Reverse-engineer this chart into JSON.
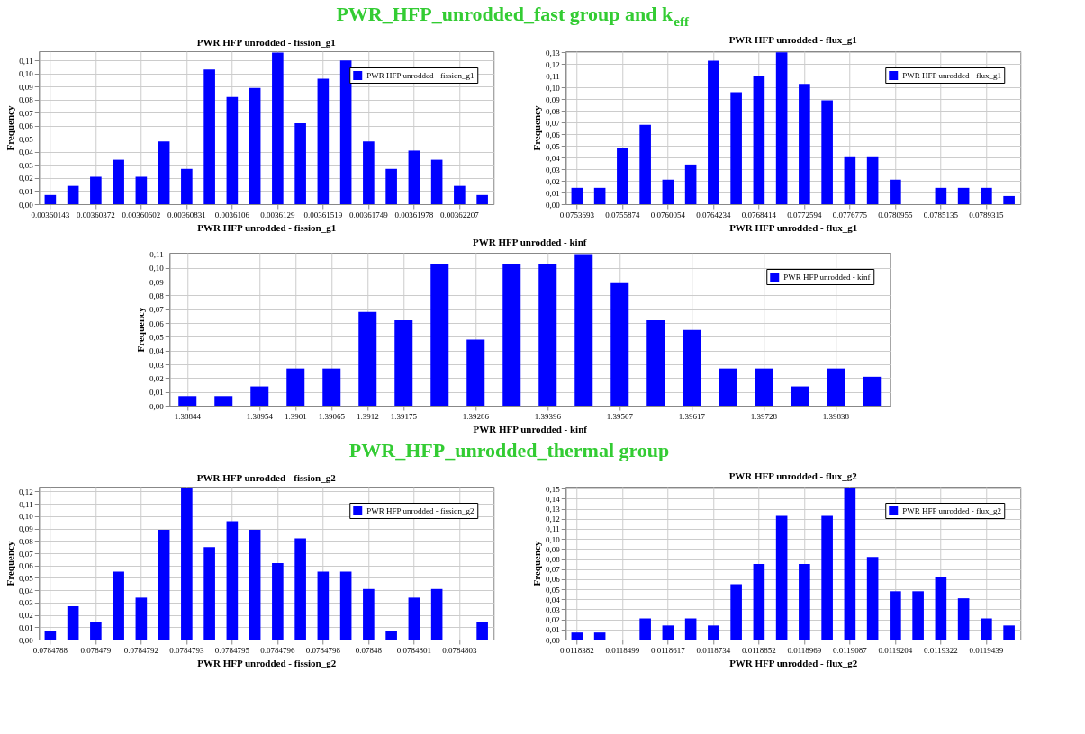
{
  "chart_data": [
    {
      "type": "other",
      "title": "PWR_HFP_unrodded_fast group and k$_{eff}$"
    },
    {
      "type": "bar",
      "title": "PWR HFP unrodded - fission_g1",
      "xlabel": "PWR HFP unrodded - fission_g1",
      "ylabel": "Frequency",
      "legend": "top right",
      "grid": true,
      "categories": [
        "0.00360143",
        null,
        "0.00360372",
        null,
        "0.00360602",
        null,
        "0.00360831",
        null,
        "0.0036106",
        null,
        "0.0036129",
        null,
        "0.00361519",
        null,
        "0.00361749",
        null,
        "0.00361978",
        null,
        "0.00362207",
        null
      ],
      "series": [
        {
          "name": "PWR HFP unrodded - fission_g1",
          "color": "#0000ff",
          "values": [
            0.007,
            0.014,
            0.021,
            0.034,
            0.021,
            0.048,
            0.027,
            0.103,
            0.082,
            0.089,
            0.116,
            0.062,
            0.096,
            0.11,
            0.048,
            0.027,
            0.041,
            0.034,
            0.014,
            0.007
          ]
        }
      ],
      "ylim": [
        0,
        0.117
      ],
      "yticks": [
        {
          "value": 0,
          "label": "0,00"
        },
        {
          "value": 0.01,
          "label": "0,01"
        },
        {
          "value": 0.02,
          "label": "0,02"
        },
        {
          "value": 0.03,
          "label": "0,03"
        },
        {
          "value": 0.04,
          "label": "0,04"
        },
        {
          "value": 0.05,
          "label": "0,05"
        },
        {
          "value": 0.06,
          "label": "0,06"
        },
        {
          "value": 0.07,
          "label": "0,07"
        },
        {
          "value": 0.08,
          "label": "0,08"
        },
        {
          "value": 0.09,
          "label": "0,09"
        },
        {
          "value": 0.1,
          "label": "0,10"
        },
        {
          "value": 0.11,
          "label": "0,11"
        }
      ]
    },
    {
      "type": "bar",
      "title": "PWR HFP unrodded - flux_g1",
      "xlabel": "PWR HFP unrodded - flux_g1",
      "ylabel": "Frequency",
      "legend": "top right",
      "grid": true,
      "categories": [
        "0.0753693",
        null,
        "0.0755874",
        null,
        "0.0760054",
        null,
        "0.0764234",
        null,
        "0.0768414",
        null,
        "0.0772594",
        null,
        "0.0776775",
        null,
        "0.0780955",
        null,
        "0.0785135",
        null,
        "0.0789315",
        null
      ],
      "series": [
        {
          "name": "PWR HFP unrodded - flux_g1",
          "color": "#0000ff",
          "values": [
            0.014,
            0.014,
            0.048,
            0.068,
            0.021,
            0.034,
            0.123,
            0.096,
            0.11,
            0.13,
            0.103,
            0.089,
            0.041,
            0.041,
            0.021,
            0,
            0.014,
            0.014,
            0.014,
            0.007
          ]
        }
      ],
      "ylim": [
        0,
        0.131
      ],
      "yticks": [
        {
          "value": 0,
          "label": "0,00"
        },
        {
          "value": 0.01,
          "label": "0,01"
        },
        {
          "value": 0.02,
          "label": "0,02"
        },
        {
          "value": 0.03,
          "label": "0,03"
        },
        {
          "value": 0.04,
          "label": "0,04"
        },
        {
          "value": 0.05,
          "label": "0,05"
        },
        {
          "value": 0.06,
          "label": "0,06"
        },
        {
          "value": 0.07,
          "label": "0,07"
        },
        {
          "value": 0.08,
          "label": "0,08"
        },
        {
          "value": 0.09,
          "label": "0,09"
        },
        {
          "value": 0.1,
          "label": "0,10"
        },
        {
          "value": 0.11,
          "label": "0,11"
        },
        {
          "value": 0.12,
          "label": "0,12"
        },
        {
          "value": 0.13,
          "label": "0,13"
        }
      ]
    },
    {
      "type": "bar",
      "title": "PWR HFP unrodded - kinf",
      "xlabel": "PWR HFP unrodded - kinf",
      "ylabel": "Frequency",
      "legend": "top right",
      "grid": true,
      "categories": [
        "1.38844",
        null,
        "1.38954",
        "1.3901",
        "1.39065",
        "1.3912",
        "1.39175",
        null,
        "1.39286",
        null,
        "1.39396",
        null,
        "1.39507",
        null,
        "1.39617",
        null,
        "1.39728",
        null,
        "1.39838",
        null
      ],
      "series": [
        {
          "name": "PWR HFP unrodded - kinf",
          "color": "#0000ff",
          "values": [
            0.007,
            0.007,
            0.014,
            0.027,
            0.027,
            0.068,
            0.062,
            0.103,
            0.048,
            0.103,
            0.103,
            0.11,
            0.089,
            0.062,
            0.055,
            0.027,
            0.027,
            0.014,
            0.027,
            0.021
          ]
        }
      ],
      "ylim": [
        0,
        0.111
      ],
      "yticks": [
        {
          "value": 0,
          "label": "0,00"
        },
        {
          "value": 0.01,
          "label": "0,01"
        },
        {
          "value": 0.02,
          "label": "0,02"
        },
        {
          "value": 0.03,
          "label": "0,03"
        },
        {
          "value": 0.04,
          "label": "0,04"
        },
        {
          "value": 0.05,
          "label": "0,05"
        },
        {
          "value": 0.06,
          "label": "0,06"
        },
        {
          "value": 0.07,
          "label": "0,07"
        },
        {
          "value": 0.08,
          "label": "0,08"
        },
        {
          "value": 0.09,
          "label": "0,09"
        },
        {
          "value": 0.1,
          "label": "0,10"
        },
        {
          "value": 0.11,
          "label": "0,11"
        }
      ]
    },
    {
      "type": "other",
      "title": "PWR_HFP_unrodded_thermal group"
    },
    {
      "type": "bar",
      "title": "PWR HFP unrodded - fission_g2",
      "xlabel": "PWR HFP unrodded - fission_g2",
      "ylabel": "Frequency",
      "legend": "top right",
      "grid": true,
      "categories": [
        "0.0784788",
        null,
        "0.078479",
        null,
        "0.0784792",
        null,
        "0.0784793",
        null,
        "0.0784795",
        null,
        "0.0784796",
        null,
        "0.0784798",
        null,
        "0.07848",
        null,
        "0.0784801",
        null,
        "0.0784803",
        null
      ],
      "series": [
        {
          "name": "PWR HFP unrodded - fission_g2",
          "color": "#0000ff",
          "values": [
            0.007,
            0.027,
            0.014,
            0.055,
            0.034,
            0.089,
            0.123,
            0.075,
            0.096,
            0.089,
            0.062,
            0.082,
            0.055,
            0.055,
            0.041,
            0.007,
            0.034,
            0.041,
            0,
            0.014
          ]
        }
      ],
      "ylim": [
        0,
        0.124
      ],
      "yticks": [
        {
          "value": 0,
          "label": "0,00"
        },
        {
          "value": 0.01,
          "label": "0,01"
        },
        {
          "value": 0.02,
          "label": "0,02"
        },
        {
          "value": 0.03,
          "label": "0,03"
        },
        {
          "value": 0.04,
          "label": "0,04"
        },
        {
          "value": 0.05,
          "label": "0,05"
        },
        {
          "value": 0.06,
          "label": "0,06"
        },
        {
          "value": 0.07,
          "label": "0,07"
        },
        {
          "value": 0.08,
          "label": "0,08"
        },
        {
          "value": 0.09,
          "label": "0,09"
        },
        {
          "value": 0.1,
          "label": "0,10"
        },
        {
          "value": 0.11,
          "label": "0,11"
        },
        {
          "value": 0.12,
          "label": "0,12"
        }
      ]
    },
    {
      "type": "bar",
      "title": "PWR HFP unrodded - flux_g2",
      "xlabel": "PWR HFP unrodded - flux_g2",
      "ylabel": "Frequency",
      "legend": "top right",
      "grid": true,
      "categories": [
        "0.0118382",
        null,
        "0.0118499",
        null,
        "0.0118617",
        null,
        "0.0118734",
        null,
        "0.0118852",
        null,
        "0.0118969",
        null,
        "0.0119087",
        null,
        "0.0119204",
        null,
        "0.0119322",
        null,
        "0.0119439",
        null
      ],
      "series": [
        {
          "name": "PWR HFP unrodded - flux_g2",
          "color": "#0000ff",
          "values": [
            0.007,
            0.007,
            0,
            0.021,
            0.014,
            0.021,
            0.014,
            0.055,
            0.075,
            0.123,
            0.075,
            0.123,
            0.151,
            0.082,
            0.048,
            0.048,
            0.062,
            0.041,
            0.021,
            0.014
          ]
        }
      ],
      "ylim": [
        0,
        0.152
      ],
      "yticks": [
        {
          "value": 0,
          "label": "0,00"
        },
        {
          "value": 0.01,
          "label": "0,01"
        },
        {
          "value": 0.02,
          "label": "0,02"
        },
        {
          "value": 0.03,
          "label": "0,03"
        },
        {
          "value": 0.04,
          "label": "0,04"
        },
        {
          "value": 0.05,
          "label": "0,05"
        },
        {
          "value": 0.06,
          "label": "0,06"
        },
        {
          "value": 0.07,
          "label": "0,07"
        },
        {
          "value": 0.08,
          "label": "0,08"
        },
        {
          "value": 0.09,
          "label": "0,09"
        },
        {
          "value": 0.1,
          "label": "0,10"
        },
        {
          "value": 0.11,
          "label": "0,11"
        },
        {
          "value": 0.12,
          "label": "0,12"
        },
        {
          "value": 0.13,
          "label": "0,13"
        },
        {
          "value": 0.14,
          "label": "0,14"
        },
        {
          "value": 0.15,
          "label": "0,15"
        }
      ]
    }
  ]
}
